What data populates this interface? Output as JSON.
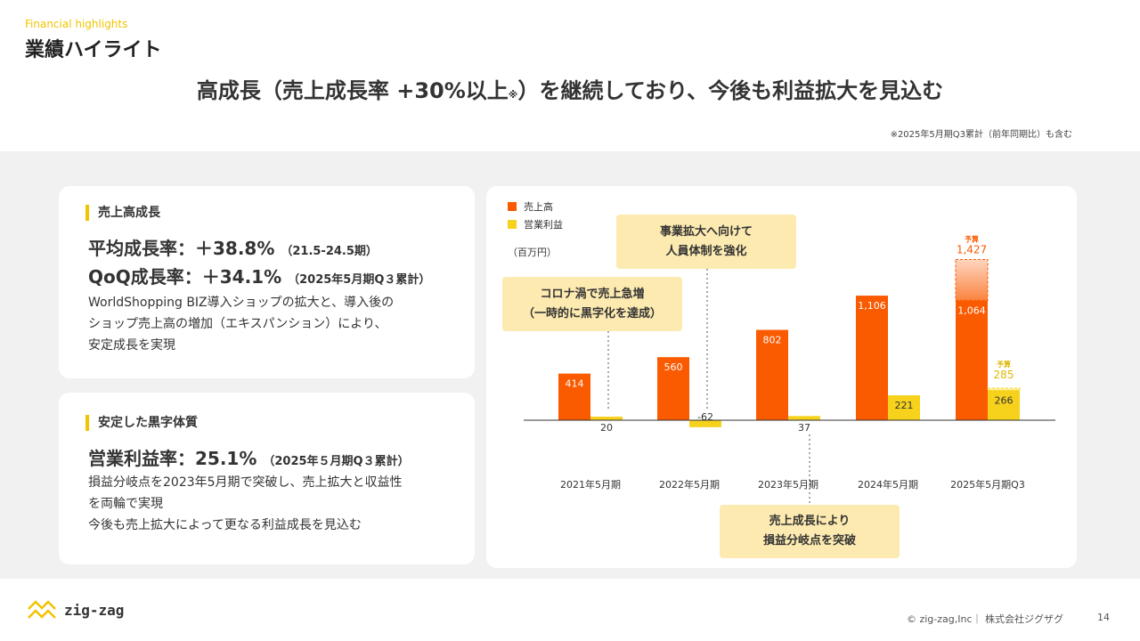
{
  "header": {
    "eyebrow": "Financial highlights",
    "title": "業績ハイライト",
    "headline_pre": "高成長（売上成長率 +30%以上",
    "headline_mark": "※",
    "headline_post": "）を継続しており、今後も利益拡大を見込む",
    "footnote": "※2025年5月期Q3累計（前年同期比）も含む"
  },
  "card_sales": {
    "title": "売上高成長",
    "kpi1_main": "平均成長率：＋38.8%",
    "kpi1_sub": "（21.5-24.5期）",
    "kpi2_main": "QoQ成長率：＋34.1%",
    "kpi2_sub": "（2025年5月期Q３累計）",
    "line1": "WorldShopping BIZ導入ショップの拡大と、導入後の",
    "line2": "ショップ売上高の増加（エキスパンション）により、",
    "line3": "安定成長を実現"
  },
  "card_profit": {
    "title": "安定した黒字体質",
    "kpi_main": "営業利益率：25.1%",
    "kpi_sub": "（2025年５月期Q３累計）",
    "line1": "損益分岐点を2023年5月期で突破し、売上拡大と収益性",
    "line2": "を両輪で実現",
    "line3": "今後も売上拡大によって更なる利益成長を見込む"
  },
  "chart_legend": {
    "sales": "売上高",
    "profit": "営業利益",
    "unit": "（百万円）"
  },
  "callouts": {
    "c1_l1": "コロナ渦で売上急増",
    "c1_l2": "（一時的に黒字化を達成）",
    "c2_l1": "事業拡大へ向けて",
    "c2_l2": "人員体制を強化",
    "c3_l1": "売上成長により",
    "c3_l2": "損益分岐点を突破"
  },
  "chart_data": {
    "type": "bar",
    "unit": "（百万円）",
    "categories": [
      "2021年5月期",
      "2022年5月期",
      "2023年5月期",
      "2024年5月期",
      "2025年5月期Q3"
    ],
    "series": [
      {
        "name": "売上高",
        "color": "#fa5a00",
        "values": [
          414,
          560,
          802,
          1106,
          1064
        ],
        "labels": [
          "414",
          "560",
          "802",
          "1,106",
          "1,064"
        ]
      },
      {
        "name": "営業利益",
        "color": "#f7d21c",
        "values": [
          20,
          -62,
          37,
          221,
          266
        ],
        "labels": [
          "20",
          "-62",
          "37",
          "221",
          "266"
        ]
      }
    ],
    "forecast": {
      "label": "予算",
      "sales": 1427,
      "sales_label": "1,427",
      "profit": 285,
      "profit_label": "285"
    }
  },
  "footer": {
    "logo_text": "zig-zag",
    "copyright": "© zig-zag,Inc｜ 株式会社ジグザグ",
    "page": "14"
  },
  "colors": {
    "accent_yellow": "#f2c300",
    "sales_orange": "#fa5a00",
    "profit_yellow": "#f7d21c",
    "callout_bg": "#fdeab0",
    "panel_gray": "#f1f1f1"
  }
}
